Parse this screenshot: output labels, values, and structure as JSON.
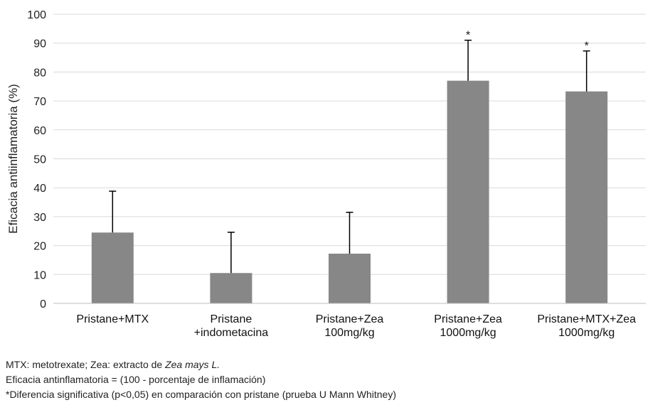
{
  "chart_data": {
    "type": "bar",
    "categories": [
      [
        "Pristane+MTX"
      ],
      [
        "Pristane",
        "+indometacina"
      ],
      [
        "Pristane+Zea",
        "100mg/kg"
      ],
      [
        "Pristane+Zea",
        "1000mg/kg"
      ],
      [
        "Pristane+MTX+Zea",
        "1000mg/kg"
      ]
    ],
    "values": [
      24.5,
      10.5,
      17.2,
      77.0,
      73.3
    ],
    "error_upper": [
      38.8,
      24.6,
      31.5,
      91.0,
      87.3
    ],
    "significant": [
      false,
      false,
      false,
      true,
      true
    ],
    "significance_marker": "*",
    "ylabel": "Eficacia antiinflamatoria (%)",
    "ylim": [
      0,
      100
    ],
    "yticks": [
      0,
      10,
      20,
      30,
      40,
      50,
      60,
      70,
      80,
      90,
      100
    ],
    "grid": true,
    "bar_color": "#878787",
    "grid_color": "#d9d9d9",
    "error_color": "#000000"
  },
  "notes": {
    "line1_prefix": "MTX: metotrexate; Zea: extracto de ",
    "line1_italic": "Zea mays L.",
    "line2": "Eficacia antinflamatoria = (100 - porcentaje de inflamación)",
    "line3": "*Diferencia significativa (p<0,05) en comparación con pristane (prueba U Mann Whitney)"
  }
}
